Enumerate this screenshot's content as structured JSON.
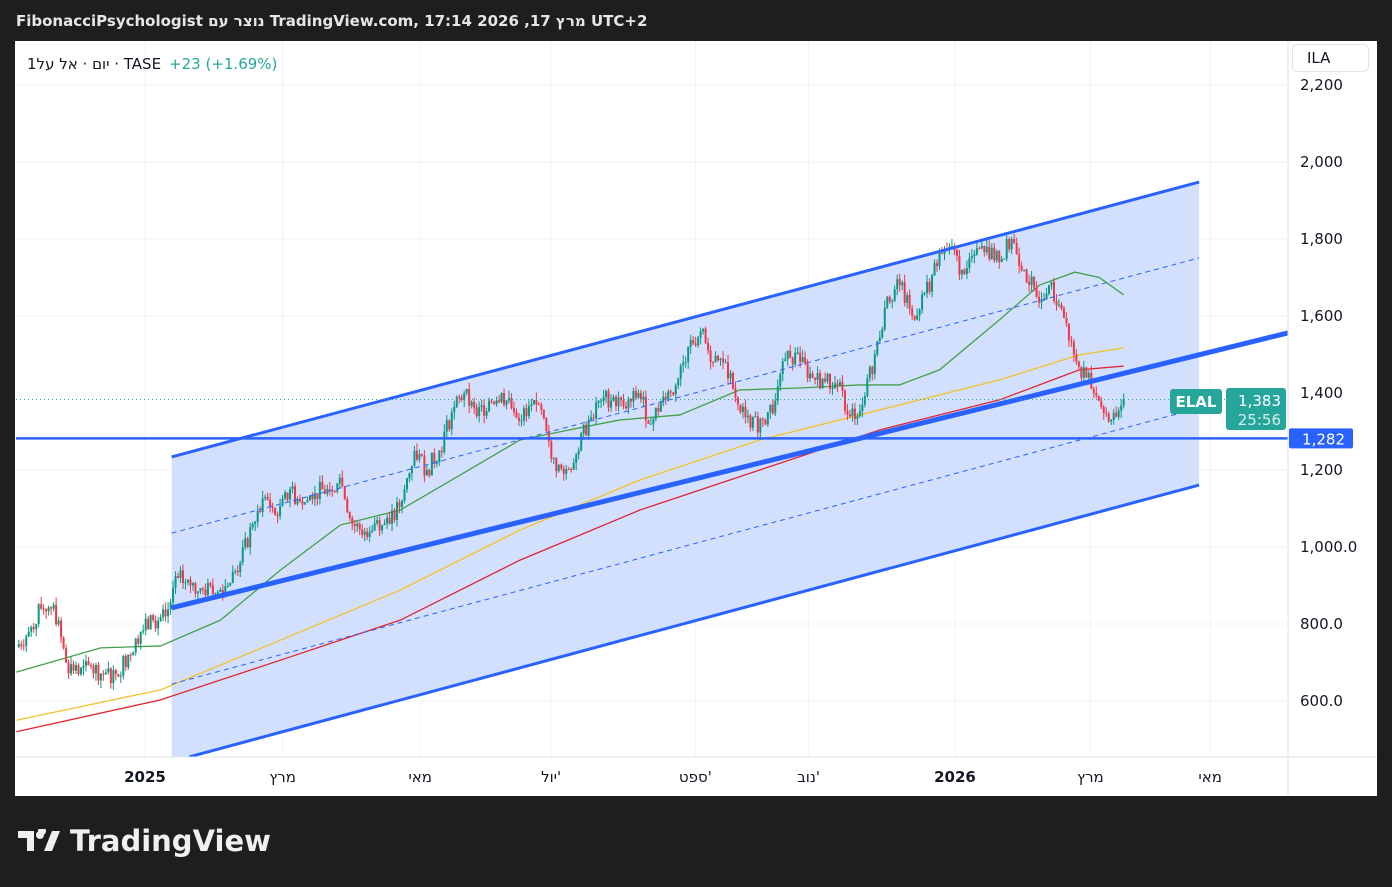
{
  "header": {
    "title": "FibonacciPsychologist נוצר עם TradingView.com, 17:14 2026 ,17 מרץ UTC+2"
  },
  "legend": {
    "symbol_info": "1יום · אל על · TASE",
    "change": "+23 (+1.69%)"
  },
  "currency_button": "ILA",
  "price_tags": {
    "symbol": "ELAL",
    "last_price": "1,383",
    "countdown": "25:56",
    "level": "1,282"
  },
  "branding": "TradingView",
  "colors": {
    "up": "#089981",
    "down": "#f23645",
    "channel": "#2962ff",
    "channel_fill": "#d1defd",
    "ma_fast": "#43a047",
    "ma_mid": "#f2c12e",
    "ma_slow": "#e0242f",
    "tag": "#26a69a"
  },
  "chart_data": {
    "type": "candlestick",
    "title": "ELAL · TASE · 1D",
    "time_unit": "days since 2025-01-01",
    "ylim": [
      450,
      2280
    ],
    "y_ticks": [
      {
        "v": 2200,
        "label": "2,200"
      },
      {
        "v": 2000,
        "label": "2,000"
      },
      {
        "v": 1800,
        "label": "1,800"
      },
      {
        "v": 1600,
        "label": "1,600"
      },
      {
        "v": 1400,
        "label": "1,400"
      },
      {
        "v": 1200,
        "label": "1,200"
      },
      {
        "v": 1000,
        "label": "1,000.0"
      },
      {
        "v": 800,
        "label": "800.0"
      },
      {
        "v": 600,
        "label": "600.0"
      }
    ],
    "x_ticks": [
      {
        "d": 0,
        "label": "2025",
        "bold": true
      },
      {
        "d": 62,
        "label": "מרץ"
      },
      {
        "d": 124,
        "label": "מאי"
      },
      {
        "d": 183,
        "label": "יול'"
      },
      {
        "d": 248,
        "label": "ספט'"
      },
      {
        "d": 299,
        "label": "נוב'"
      },
      {
        "d": 365,
        "label": "2026",
        "bold": true
      },
      {
        "d": 426,
        "label": "מרץ"
      },
      {
        "d": 480,
        "label": "מאי"
      }
    ],
    "xlim": [
      -58,
      515
    ],
    "closes_start_day": -58,
    "closes_end_day": 441,
    "closes": [
      740,
      780,
      840,
      850,
      700,
      670,
      690,
      670,
      670,
      720,
      780,
      810,
      820,
      920,
      900,
      890,
      880,
      900,
      960,
      1060,
      1130,
      1080,
      1150,
      1110,
      1140,
      1150,
      1180,
      1060,
      1040,
      1070,
      1060,
      1120,
      1250,
      1200,
      1250,
      1350,
      1400,
      1340,
      1380,
      1400,
      1350,
      1340,
      1370,
      1230,
      1190,
      1240,
      1330,
      1380,
      1390,
      1360,
      1400,
      1320,
      1390,
      1420,
      1520,
      1560,
      1480,
      1480,
      1370,
      1310,
      1330,
      1380,
      1510,
      1480,
      1440,
      1430,
      1420,
      1340,
      1370,
      1500,
      1650,
      1680,
      1600,
      1660,
      1730,
      1780,
      1720,
      1760,
      1780,
      1740,
      1800,
      1720,
      1650,
      1680,
      1620,
      1500,
      1440,
      1380,
      1330,
      1383
    ],
    "moving_averages": [
      {
        "name": "MA fast",
        "color": "#43a047",
        "points": [
          [
            -58,
            675
          ],
          [
            -20,
            738
          ],
          [
            7,
            743
          ],
          [
            34,
            810
          ],
          [
            61,
            940
          ],
          [
            88,
            1057
          ],
          [
            115,
            1096
          ],
          [
            142,
            1187
          ],
          [
            169,
            1278
          ],
          [
            191,
            1304
          ],
          [
            214,
            1330
          ],
          [
            241,
            1343
          ],
          [
            268,
            1408
          ],
          [
            295,
            1413
          ],
          [
            322,
            1421
          ],
          [
            340,
            1421
          ],
          [
            358,
            1460
          ],
          [
            385,
            1590
          ],
          [
            403,
            1680
          ],
          [
            419,
            1714
          ],
          [
            430,
            1700
          ],
          [
            441,
            1655
          ]
        ]
      },
      {
        "name": "MA mid",
        "color": "#f2c12e",
        "points": [
          [
            -58,
            550
          ],
          [
            7,
            629
          ],
          [
            61,
            758
          ],
          [
            115,
            888
          ],
          [
            169,
            1044
          ],
          [
            223,
            1174
          ],
          [
            277,
            1278
          ],
          [
            331,
            1356
          ],
          [
            385,
            1434
          ],
          [
            421,
            1499
          ],
          [
            441,
            1517
          ]
        ]
      },
      {
        "name": "MA slow",
        "color": "#e0242f",
        "points": [
          [
            -58,
            520
          ],
          [
            7,
            603
          ],
          [
            61,
            706
          ],
          [
            115,
            810
          ],
          [
            169,
            966
          ],
          [
            223,
            1096
          ],
          [
            277,
            1200
          ],
          [
            331,
            1304
          ],
          [
            385,
            1382
          ],
          [
            421,
            1460
          ],
          [
            441,
            1470
          ]
        ]
      }
    ],
    "drawings": {
      "channel_upper": [
        [
          12,
          1234
        ],
        [
          475,
          1948
        ]
      ],
      "channel_mid": [
        [
          12,
          842
        ],
        [
          515,
          1556
        ]
      ],
      "channel_lower": [
        [
          20,
          455
        ],
        [
          475,
          1161
        ]
      ],
      "dashed_upper": [
        [
          12,
          1036
        ],
        [
          475,
          1751
        ]
      ],
      "dashed_lower": [
        [
          12,
          644
        ],
        [
          475,
          1361
        ]
      ],
      "horizontal_level": 1282,
      "last_price": 1383
    }
  }
}
